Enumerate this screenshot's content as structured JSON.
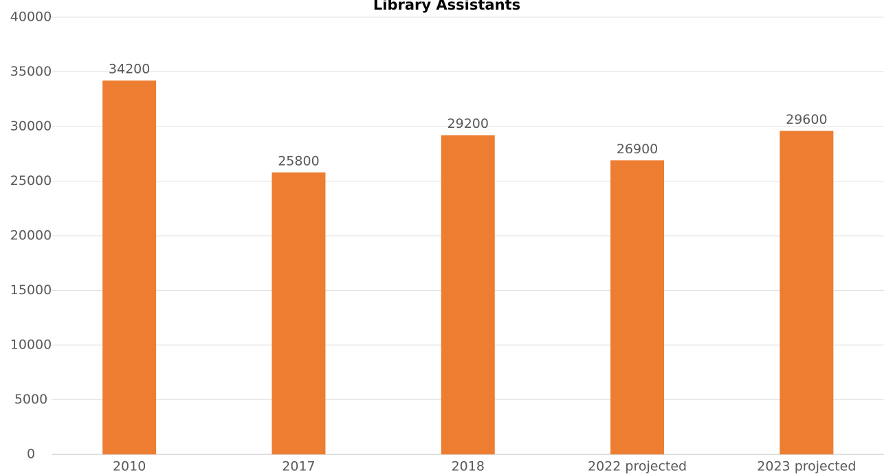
{
  "chart_data": {
    "type": "bar",
    "title": "Library Assistants",
    "categories": [
      "2010",
      "2017",
      "2018",
      "2022 projected",
      "2023 projected"
    ],
    "values": [
      34200,
      25800,
      29200,
      26900,
      29600
    ],
    "color": "#ed7d31",
    "ylim": [
      0,
      40000
    ],
    "yticks": [
      0,
      5000,
      10000,
      15000,
      20000,
      25000,
      30000,
      35000,
      40000
    ],
    "grid": true
  }
}
